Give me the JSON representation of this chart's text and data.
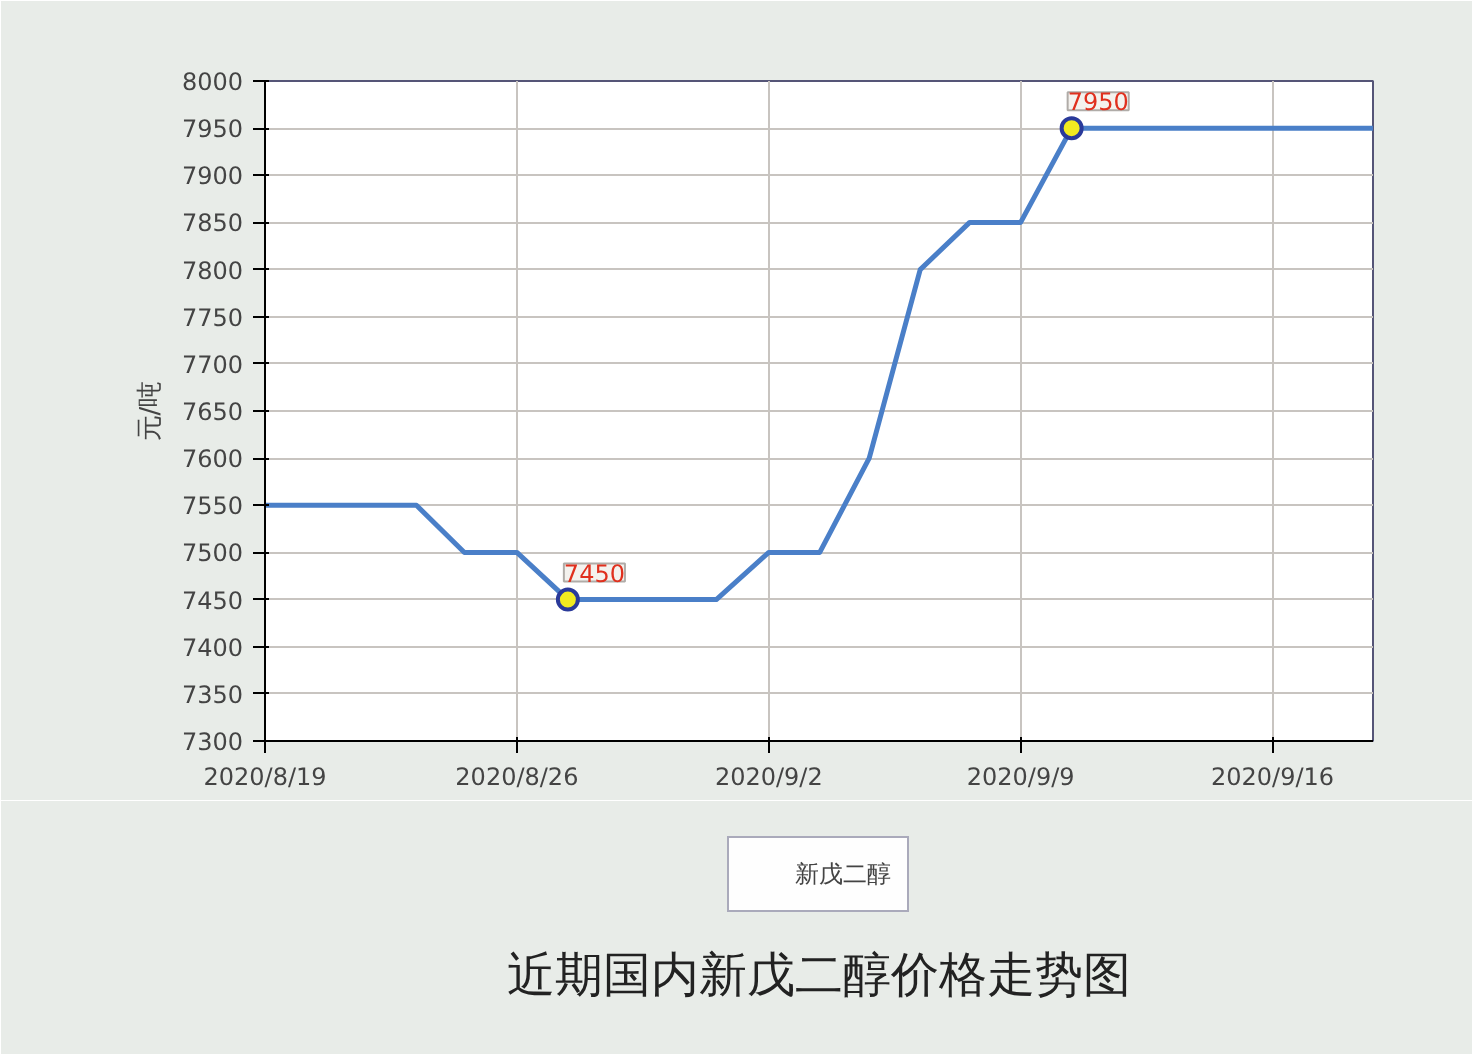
{
  "chart_data": {
    "type": "line",
    "title": "近期国内新戊二醇价格走势图",
    "ylabel": "元/吨",
    "x": [
      "2020-08-19",
      "2020-08-23T05:00",
      "2020-08-24T13:00",
      "2020-08-26",
      "2020-08-27T10:00",
      "2020-08-31T13:00",
      "2020-09-02",
      "2020-09-03T10:00",
      "2020-09-04T19:00",
      "2020-09-06T05:00",
      "2020-09-07T14:00",
      "2020-09-09",
      "2020-09-10T10:00",
      "2020-09-18T19:00"
    ],
    "series": [
      {
        "name": "新戊二醇",
        "color": "#4a7fc8",
        "values": [
          7550,
          7550,
          7500,
          7500,
          7450,
          7450,
          7500,
          7500,
          7600,
          7800,
          7850,
          7850,
          7950,
          7950
        ]
      }
    ],
    "xlim": [
      "2020-08-19",
      "2020-09-18T19:00"
    ],
    "xticks": [
      {
        "value": "2020-08-19",
        "label": "2020/8/19"
      },
      {
        "value": "2020-08-26",
        "label": "2020/8/26"
      },
      {
        "value": "2020-09-02",
        "label": "2020/9/2"
      },
      {
        "value": "2020-09-09",
        "label": "2020/9/9"
      },
      {
        "value": "2020-09-16",
        "label": "2020/9/16"
      }
    ],
    "ylim": [
      7300,
      8000
    ],
    "yticks": [
      7300,
      7350,
      7400,
      7450,
      7500,
      7550,
      7600,
      7650,
      7700,
      7750,
      7800,
      7850,
      7900,
      7950,
      8000
    ],
    "annotations": [
      {
        "text": "7450",
        "x": "2020-08-27T10:00",
        "y": 7450
      },
      {
        "text": "7950",
        "x": "2020-09-10T10:00",
        "y": 7950
      }
    ],
    "grid": true,
    "legend": "bottom",
    "marker": "none",
    "line_style": "solid"
  }
}
